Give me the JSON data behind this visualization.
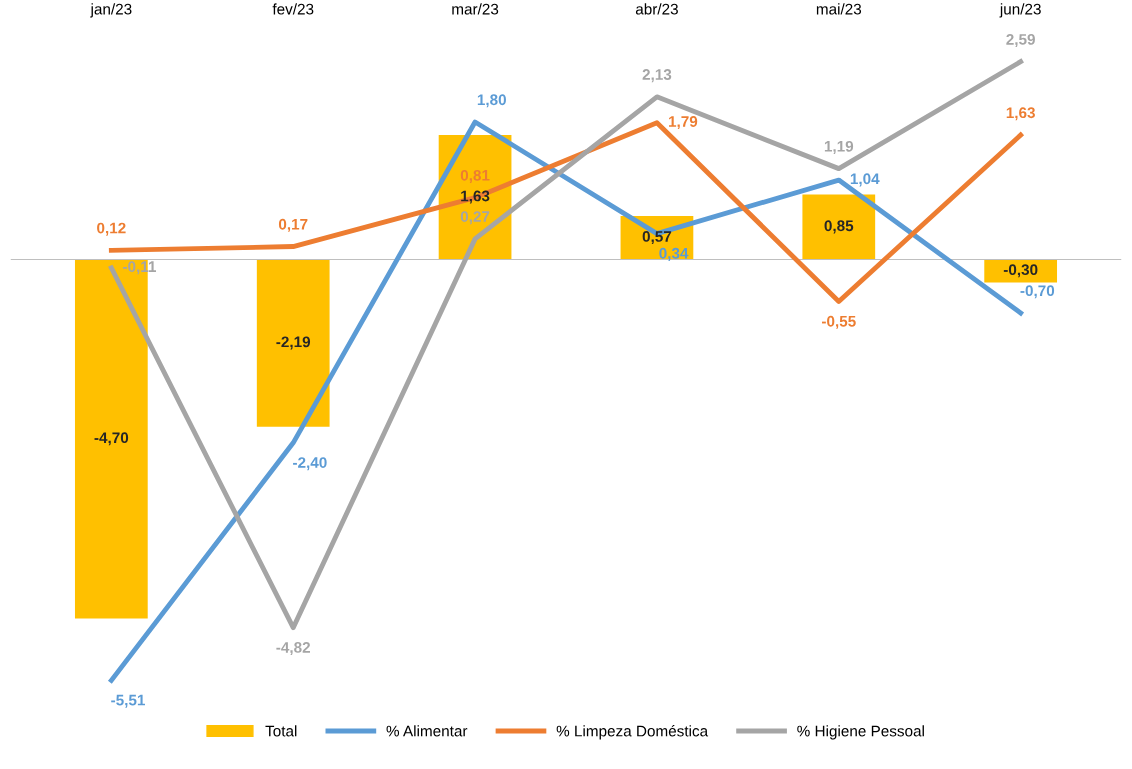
{
  "chart_data": {
    "type": "bar",
    "categories": [
      "jan/23",
      "fev/23",
      "mar/23",
      "abr/23",
      "mai/23",
      "jun/23"
    ],
    "series": [
      {
        "name": "Total",
        "color": "#ffc000",
        "values": [
          -4.7,
          -2.19,
          1.63,
          0.57,
          0.85,
          -0.3
        ],
        "value_labels": [
          "-4,70",
          "-2,19",
          "1,63",
          "0,57",
          "0,85",
          "-0,30"
        ]
      },
      {
        "name": "% Alimentar",
        "type": "line",
        "color": "#5b9bd5",
        "values": [
          -5.51,
          -2.4,
          1.8,
          0.34,
          1.04,
          -0.7
        ],
        "value_labels": [
          "-5,51",
          "-2,40",
          "1,80",
          "0,34",
          "1,04",
          "-0,70"
        ]
      },
      {
        "name": "% Limpeza Doméstica",
        "type": "line",
        "color": "#ed7d31",
        "values": [
          0.12,
          0.17,
          0.81,
          1.79,
          -0.55,
          1.63
        ],
        "value_labels": [
          "0,12",
          "0,17",
          "0,81",
          "1,79",
          "-0,55",
          "1,63"
        ]
      },
      {
        "name": "% Higiene Pessoal",
        "type": "line",
        "color": "#a5a5a5",
        "values": [
          -0.11,
          -4.82,
          0.27,
          2.13,
          1.19,
          2.59
        ],
        "value_labels": [
          "-0,11",
          "-4,82",
          "0,27",
          "2,13",
          "1,19",
          "2,59"
        ]
      }
    ],
    "legend": "bottom",
    "grid": false,
    "marker": "none",
    "line_style": "solid"
  }
}
